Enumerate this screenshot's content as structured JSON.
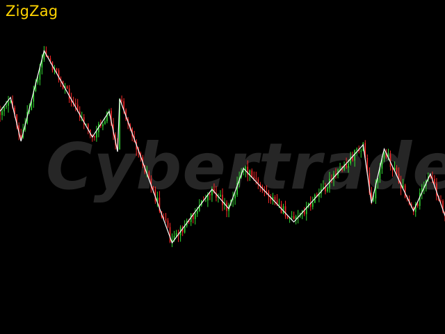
{
  "title": "ZigZag",
  "watermark": "Cybertrade",
  "colors": {
    "background": "#000000",
    "title": "#ffd400",
    "watermark": "#262626",
    "candle_up": "#33dd33",
    "candle_down": "#ff2a2a",
    "zigzag_line": "#ffffff"
  },
  "chart_data": {
    "type": "line",
    "description_type": "candlestick with zigzag overlay",
    "title": "ZigZag",
    "grid": false,
    "legend": "none",
    "candles_count": 213,
    "zigzag_pivots": [
      [
        0,
        160
      ],
      [
        5,
        140
      ],
      [
        10,
        203
      ],
      [
        21,
        73
      ],
      [
        44,
        197
      ],
      [
        52,
        160
      ],
      [
        56,
        218
      ],
      [
        57,
        142
      ],
      [
        82,
        349
      ],
      [
        101,
        272
      ],
      [
        109,
        300
      ],
      [
        116,
        242
      ],
      [
        140,
        319
      ],
      [
        173,
        208
      ],
      [
        177,
        292
      ],
      [
        183,
        214
      ],
      [
        197,
        303
      ],
      [
        205,
        250
      ],
      [
        212,
        310
      ]
    ]
  }
}
